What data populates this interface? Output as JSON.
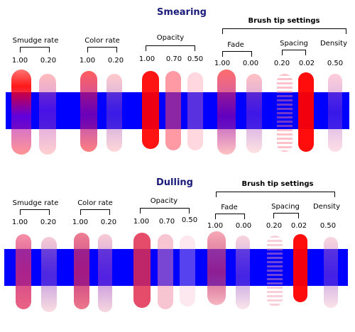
{
  "sections": [
    {
      "id": "smearing",
      "title": "Smearing",
      "groups": [
        {
          "label": "Smudge rate",
          "values": [
            "1.00",
            "0.20"
          ]
        },
        {
          "label": "Color rate",
          "values": [
            "1.00",
            "0.20"
          ]
        },
        {
          "label": "Opacity",
          "values": [
            "1.00",
            "0.70",
            "0.50"
          ]
        },
        {
          "label": "Fade",
          "values": [
            "1.00",
            "0.00"
          ]
        },
        {
          "label": "Spacing",
          "values": [
            "0.20",
            "0.02"
          ]
        },
        {
          "label": "Density",
          "values": [
            "0.50"
          ]
        }
      ],
      "brush_tip_label": "Brush tip settings"
    },
    {
      "id": "dulling",
      "title": "Dulling",
      "groups": [
        {
          "label": "Smudge rate",
          "values": [
            "1.00",
            "0.20"
          ]
        },
        {
          "label": "Color rate",
          "values": [
            "1.00",
            "0.20"
          ]
        },
        {
          "label": "Opacity",
          "values": [
            "1.00",
            "0.70",
            "0.50"
          ]
        },
        {
          "label": "Fade",
          "values": [
            "1.00",
            "0.00"
          ]
        },
        {
          "label": "Spacing",
          "values": [
            "0.20",
            "0.02"
          ]
        },
        {
          "label": "Density",
          "values": [
            "0.50"
          ]
        }
      ],
      "brush_tip_label": "Brush tip settings"
    }
  ],
  "colors": {
    "band": "#0000ff",
    "stroke": "#ff0000",
    "title": "#1a1a7a"
  }
}
